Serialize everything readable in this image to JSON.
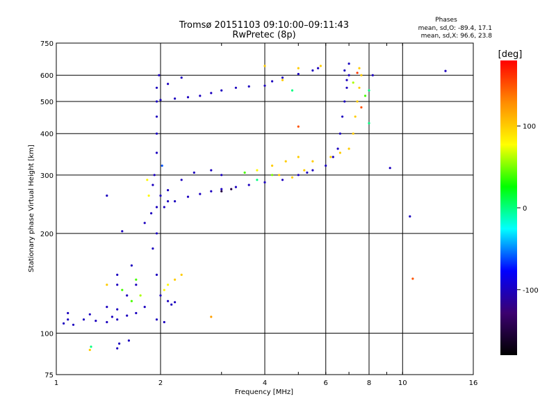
{
  "chart_data": {
    "type": "scatter",
    "title": "Tromsø 20151103 09:10:00–09:11:43",
    "subtitle": "RwPretec (8p)",
    "xlabel": "Frequency [MHz]",
    "ylabel": "Stationary phase Virtual Height [km]",
    "x_scale": "log",
    "y_scale": "log",
    "xlim": [
      1,
      16
    ],
    "ylim": [
      75,
      750
    ],
    "x_ticks": [
      1,
      2,
      4,
      6,
      8,
      10,
      16
    ],
    "y_ticks": [
      75,
      100,
      200,
      300,
      400,
      500,
      600,
      750
    ],
    "grid": true,
    "stats": {
      "heading": "Phases",
      "line_o": "mean, sd,O: -89.4, 17.1",
      "line_x": "mean, sd,X:  96.6, 23.8"
    },
    "colorbar": {
      "label": "[deg]",
      "range": [
        -180,
        180
      ],
      "ticks": [
        100,
        0,
        -100
      ],
      "colors": [
        "#ff0000",
        "#ff8c00",
        "#ffff00",
        "#00ff00",
        "#00ffff",
        "#0000ff",
        "#3c0070",
        "#000000"
      ]
    },
    "series": [
      {
        "points": [
          [
            1.05,
            107,
            -100
          ],
          [
            1.08,
            110,
            -100
          ],
          [
            1.12,
            106,
            -100
          ],
          [
            1.2,
            110,
            -100
          ],
          [
            1.3,
            109,
            -100
          ],
          [
            1.4,
            108,
            -100
          ],
          [
            1.5,
            110,
            -100
          ],
          [
            1.6,
            113,
            -100
          ],
          [
            1.7,
            115,
            -100
          ],
          [
            1.8,
            120,
            -100
          ],
          [
            1.08,
            115,
            -100
          ],
          [
            1.25,
            114,
            -100
          ],
          [
            1.5,
            118,
            -100
          ],
          [
            1.6,
            130,
            -100
          ],
          [
            1.7,
            140,
            -100
          ],
          [
            1.5,
            140,
            -100
          ],
          [
            1.5,
            150,
            -100
          ],
          [
            1.55,
            135,
            40
          ],
          [
            1.65,
            125,
            40
          ],
          [
            1.7,
            145,
            40
          ],
          [
            1.4,
            120,
            -100
          ],
          [
            1.45,
            112,
            -100
          ],
          [
            1.65,
            160,
            -100
          ],
          [
            1.75,
            130,
            60
          ],
          [
            1.5,
            90,
            -100
          ],
          [
            1.52,
            93,
            -100
          ],
          [
            1.62,
            95,
            -100
          ],
          [
            1.26,
            91,
            0
          ],
          [
            1.25,
            89,
            100
          ],
          [
            1.4,
            140,
            100
          ],
          [
            1.95,
            110,
            -100
          ],
          [
            2.05,
            108,
            -100
          ],
          [
            1.95,
            150,
            -100
          ],
          [
            1.9,
            180,
            -100
          ],
          [
            1.95,
            200,
            -100
          ],
          [
            2.0,
            130,
            -100
          ],
          [
            2.05,
            135,
            80
          ],
          [
            2.1,
            140,
            80
          ],
          [
            2.2,
            145,
            100
          ],
          [
            2.3,
            150,
            100
          ],
          [
            2.1,
            125,
            -100
          ],
          [
            2.15,
            122,
            -100
          ],
          [
            2.2,
            124,
            -100
          ],
          [
            1.88,
            230,
            -100
          ],
          [
            1.95,
            240,
            -100
          ],
          [
            2.0,
            260,
            -100
          ],
          [
            2.1,
            250,
            -100
          ],
          [
            1.9,
            280,
            -100
          ],
          [
            1.92,
            300,
            -100
          ],
          [
            1.95,
            350,
            -100
          ],
          [
            1.95,
            400,
            -100
          ],
          [
            1.95,
            450,
            -100
          ],
          [
            1.95,
            500,
            -100
          ],
          [
            1.95,
            550,
            -100
          ],
          [
            1.98,
            600,
            -100
          ],
          [
            1.85,
            260,
            80
          ],
          [
            1.83,
            290,
            80
          ],
          [
            2.02,
            320,
            -60
          ],
          [
            2.0,
            505,
            -100
          ],
          [
            2.2,
            510,
            -100
          ],
          [
            2.4,
            515,
            -100
          ],
          [
            2.6,
            520,
            -100
          ],
          [
            2.8,
            530,
            -100
          ],
          [
            3.0,
            540,
            -100
          ],
          [
            3.3,
            550,
            -100
          ],
          [
            3.6,
            555,
            -100
          ],
          [
            4.0,
            558,
            -100
          ],
          [
            4.2,
            575,
            -100
          ],
          [
            4.5,
            590,
            -100
          ],
          [
            5.0,
            605,
            -100
          ],
          [
            5.5,
            620,
            -100
          ],
          [
            5.7,
            630,
            -100
          ],
          [
            2.1,
            565,
            -100
          ],
          [
            2.3,
            590,
            -100
          ],
          [
            4.5,
            580,
            100
          ],
          [
            5.0,
            630,
            100
          ],
          [
            4.0,
            640,
            100
          ],
          [
            5.8,
            640,
            100
          ],
          [
            4.8,
            540,
            0
          ],
          [
            2.05,
            240,
            -100
          ],
          [
            2.2,
            250,
            -100
          ],
          [
            2.4,
            258,
            -100
          ],
          [
            2.6,
            263,
            -100
          ],
          [
            2.8,
            268,
            -100
          ],
          [
            3.0,
            272,
            -100
          ],
          [
            3.3,
            276,
            -100
          ],
          [
            3.6,
            280,
            -100
          ],
          [
            4.0,
            285,
            -100
          ],
          [
            4.5,
            290,
            -100
          ],
          [
            5.0,
            300,
            -100
          ],
          [
            5.3,
            305,
            -100
          ],
          [
            3.0,
            268,
            -150
          ],
          [
            3.2,
            272,
            -150
          ],
          [
            2.1,
            270,
            -100
          ],
          [
            2.3,
            290,
            -100
          ],
          [
            2.5,
            305,
            -100
          ],
          [
            2.8,
            310,
            -100
          ],
          [
            3.0,
            300,
            -100
          ],
          [
            3.5,
            305,
            40
          ],
          [
            3.8,
            310,
            80
          ],
          [
            4.2,
            320,
            100
          ],
          [
            4.6,
            330,
            100
          ],
          [
            5.0,
            340,
            100
          ],
          [
            5.5,
            330,
            100
          ],
          [
            4.4,
            300,
            100
          ],
          [
            4.8,
            295,
            100
          ],
          [
            5.2,
            310,
            100
          ],
          [
            3.8,
            290,
            0
          ],
          [
            4.2,
            300,
            50
          ],
          [
            5.5,
            310,
            -100
          ],
          [
            6.0,
            320,
            -100
          ],
          [
            6.3,
            340,
            -100
          ],
          [
            6.5,
            360,
            -100
          ],
          [
            6.6,
            400,
            -100
          ],
          [
            6.7,
            450,
            -100
          ],
          [
            6.8,
            500,
            -100
          ],
          [
            6.9,
            550,
            -100
          ],
          [
            7.0,
            600,
            -100
          ],
          [
            7.0,
            650,
            -100
          ],
          [
            6.8,
            620,
            -100
          ],
          [
            6.9,
            580,
            -100
          ],
          [
            6.2,
            340,
            100
          ],
          [
            6.6,
            350,
            100
          ],
          [
            7.0,
            360,
            100
          ],
          [
            7.2,
            400,
            100
          ],
          [
            7.3,
            450,
            100
          ],
          [
            7.4,
            500,
            100
          ],
          [
            7.5,
            550,
            100
          ],
          [
            7.6,
            600,
            100
          ],
          [
            7.5,
            630,
            100
          ],
          [
            7.8,
            520,
            40
          ],
          [
            7.6,
            480,
            150
          ],
          [
            7.4,
            610,
            160
          ],
          [
            7.2,
            570,
            60
          ],
          [
            5.0,
            420,
            150
          ],
          [
            8.2,
            600,
            -100
          ],
          [
            8.0,
            540,
            0
          ],
          [
            8.0,
            430,
            0
          ],
          [
            9.2,
            315,
            -100
          ],
          [
            10.5,
            225,
            -100
          ],
          [
            10.7,
            146,
            150
          ],
          [
            13.3,
            618,
            -100
          ],
          [
            2.8,
            112,
            120
          ],
          [
            1.4,
            260,
            -100
          ],
          [
            1.55,
            203,
            -100
          ],
          [
            1.8,
            215,
            -100
          ]
        ]
      }
    ]
  }
}
